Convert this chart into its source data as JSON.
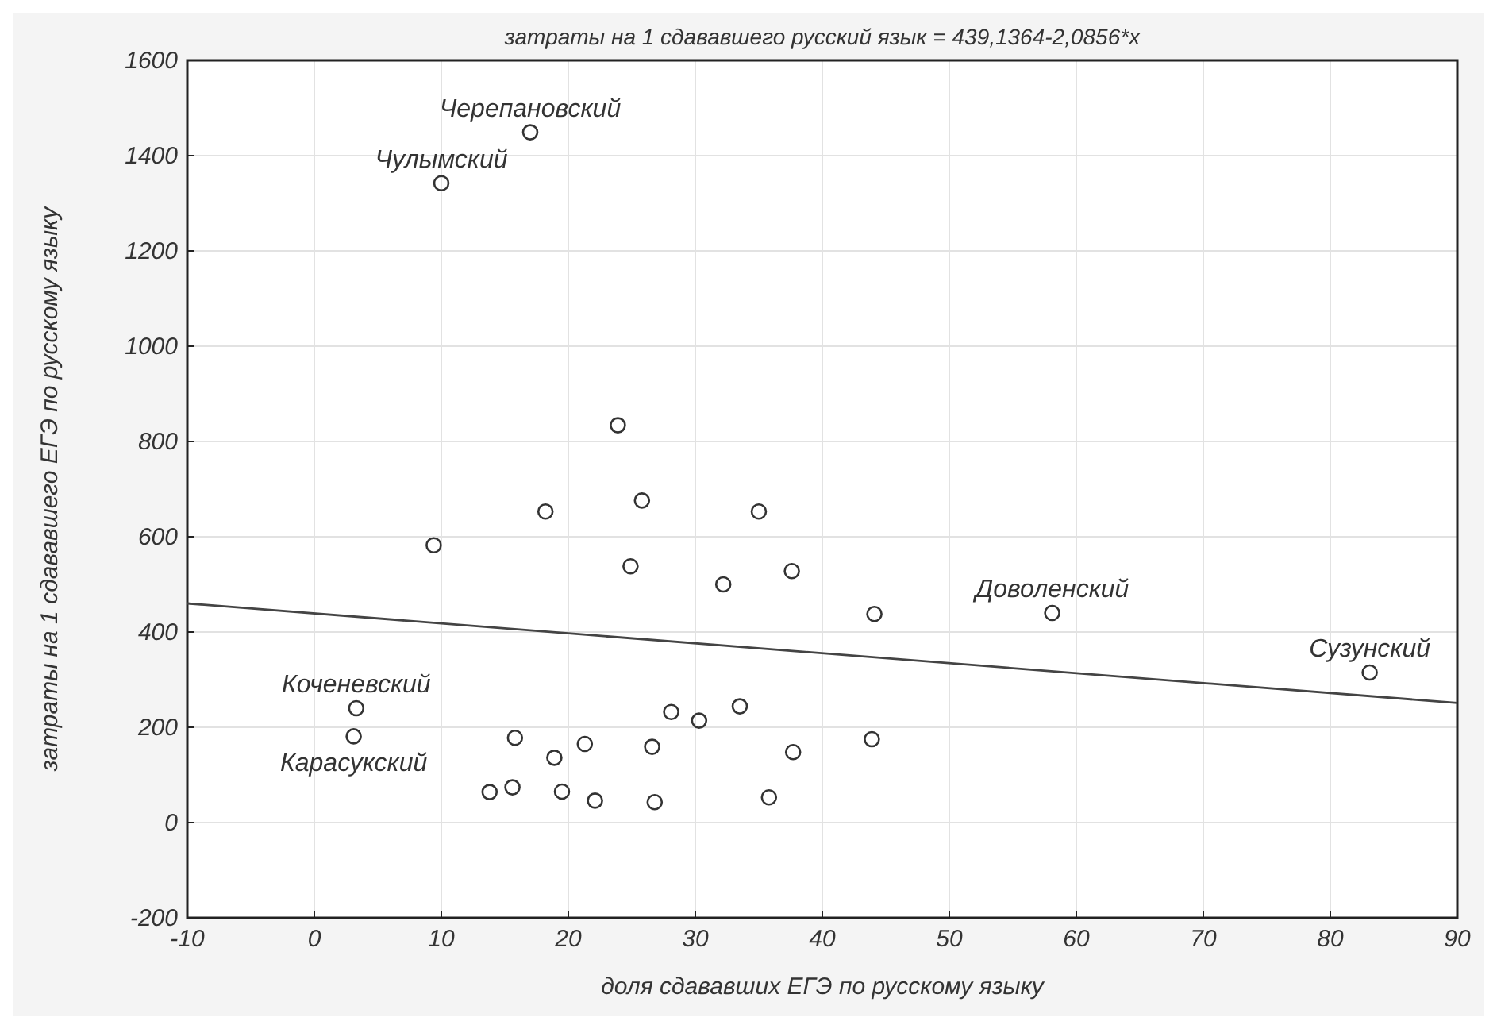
{
  "chart_data": {
    "type": "scatter",
    "title": "затраты на 1 сдававшего русский язык = 439,1364-2,0856*x",
    "xlabel": "доля сдававших ЕГЭ по русскому языку",
    "ylabel": "затраты на 1 сдававшего ЕГЭ по русскому языку",
    "x": [
      17.0,
      10.0,
      23.9,
      18.2,
      25.8,
      35.0,
      9.4,
      24.9,
      32.2,
      37.6,
      44.1,
      58.1,
      83.1,
      43.9,
      3.3,
      3.1,
      15.8,
      18.9,
      21.3,
      28.1,
      30.3,
      33.5,
      26.6,
      37.7,
      13.8,
      15.6,
      19.5,
      22.1,
      26.8,
      35.8
    ],
    "series": [
      {
        "color": "#333333",
        "values": [
          1449,
          1342,
          834,
          653,
          676,
          653,
          582,
          538,
          500,
          528,
          438,
          440,
          315,
          175,
          240,
          181,
          178,
          136,
          165,
          232,
          214,
          244,
          159,
          148,
          64,
          74,
          65,
          46,
          43,
          53
        ]
      },
      {
        "type": "line",
        "color": "#444444",
        "marker": "none",
        "x": [
          -10,
          90
        ],
        "values": [
          460,
          251
        ]
      }
    ],
    "annotations": [
      {
        "text": "Черепановский",
        "x": 17.0,
        "y": 1449
      },
      {
        "text": "Чулымский",
        "x": 10.0,
        "y": 1342
      },
      {
        "text": "Доволенский",
        "x": 58.1,
        "y": 440
      },
      {
        "text": "Сузунский",
        "x": 83.1,
        "y": 315
      },
      {
        "text": "Коченевский",
        "x": 3.3,
        "y": 240
      },
      {
        "text": "Карасукский",
        "x": 3.1,
        "y": 181
      }
    ],
    "xlim": [
      -10,
      90
    ],
    "xticks": [
      -10,
      0,
      10,
      20,
      30,
      40,
      50,
      60,
      70,
      80,
      90
    ],
    "ylim": [
      -200,
      1600
    ],
    "yticks": [
      -200,
      0,
      200,
      400,
      600,
      800,
      1000,
      1200,
      1400,
      1600
    ],
    "grid": true,
    "marker": "circle",
    "line_style": "solid"
  }
}
